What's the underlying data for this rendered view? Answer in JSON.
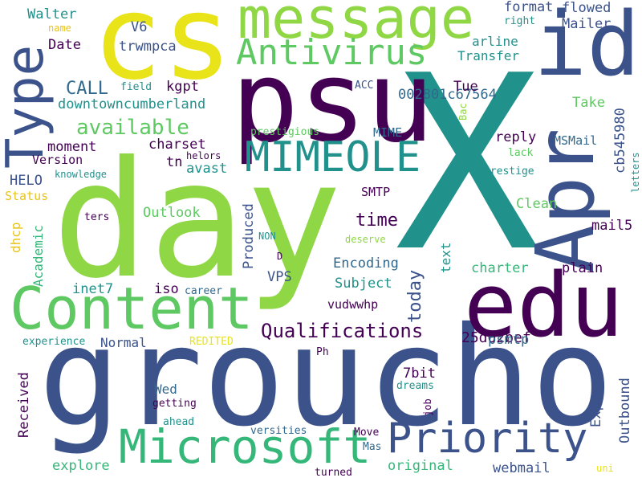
{
  "colors": {
    "dark_purple": "#440154",
    "indigo": "#3b528b",
    "blue": "#31688e",
    "teal": "#21918c",
    "green": "#35b779",
    "lime": "#8fd744",
    "yellow": "#e8e419"
  },
  "words": [
    "X",
    "groucho",
    "day",
    "psu",
    "cs",
    "edu",
    "Apr",
    "id",
    "message",
    "Content",
    "Type",
    "Microsoft",
    "Priority",
    "MIMEOLE",
    "Antivirus",
    "available",
    "Qualifications",
    "CALL",
    "downtowncumberland",
    "today",
    "time",
    "Subject",
    "Encoding",
    "vudwwhp",
    "25d02bef",
    "002801c67564",
    "Transfer",
    "arline",
    "Mailer",
    "flowed",
    "format",
    "right",
    "Walter",
    "name",
    "Date",
    "trwmpca",
    "V6",
    "kgpt",
    "field",
    "ACC",
    "Tue",
    "Take",
    "Bac",
    "cb545980",
    "letters",
    "prestige",
    "lack",
    "MSMail",
    "reply",
    "prestigious",
    "MIME",
    "charset",
    "moment",
    "Version",
    "HELO",
    "knowledge",
    "tn",
    "avast",
    "helors",
    "Status",
    "SMTP",
    "Clean",
    "mail5",
    "Outlook",
    "dhcp",
    "ters",
    "Academic",
    "Produced",
    "NON",
    "D",
    "deserve",
    "text",
    "VPS",
    "charter",
    "plain",
    "inet7",
    "iso",
    "career",
    "Normal",
    "experience",
    "REDITED",
    "Ph",
    "psmtp",
    "Received",
    "Wed",
    "getting",
    "7bit",
    "dreams",
    "job",
    "Express",
    "Outbound",
    "explore",
    "ahead",
    "versities",
    "Move",
    "Mas",
    "original",
    "webmail",
    "turned",
    "uni"
  ]
}
